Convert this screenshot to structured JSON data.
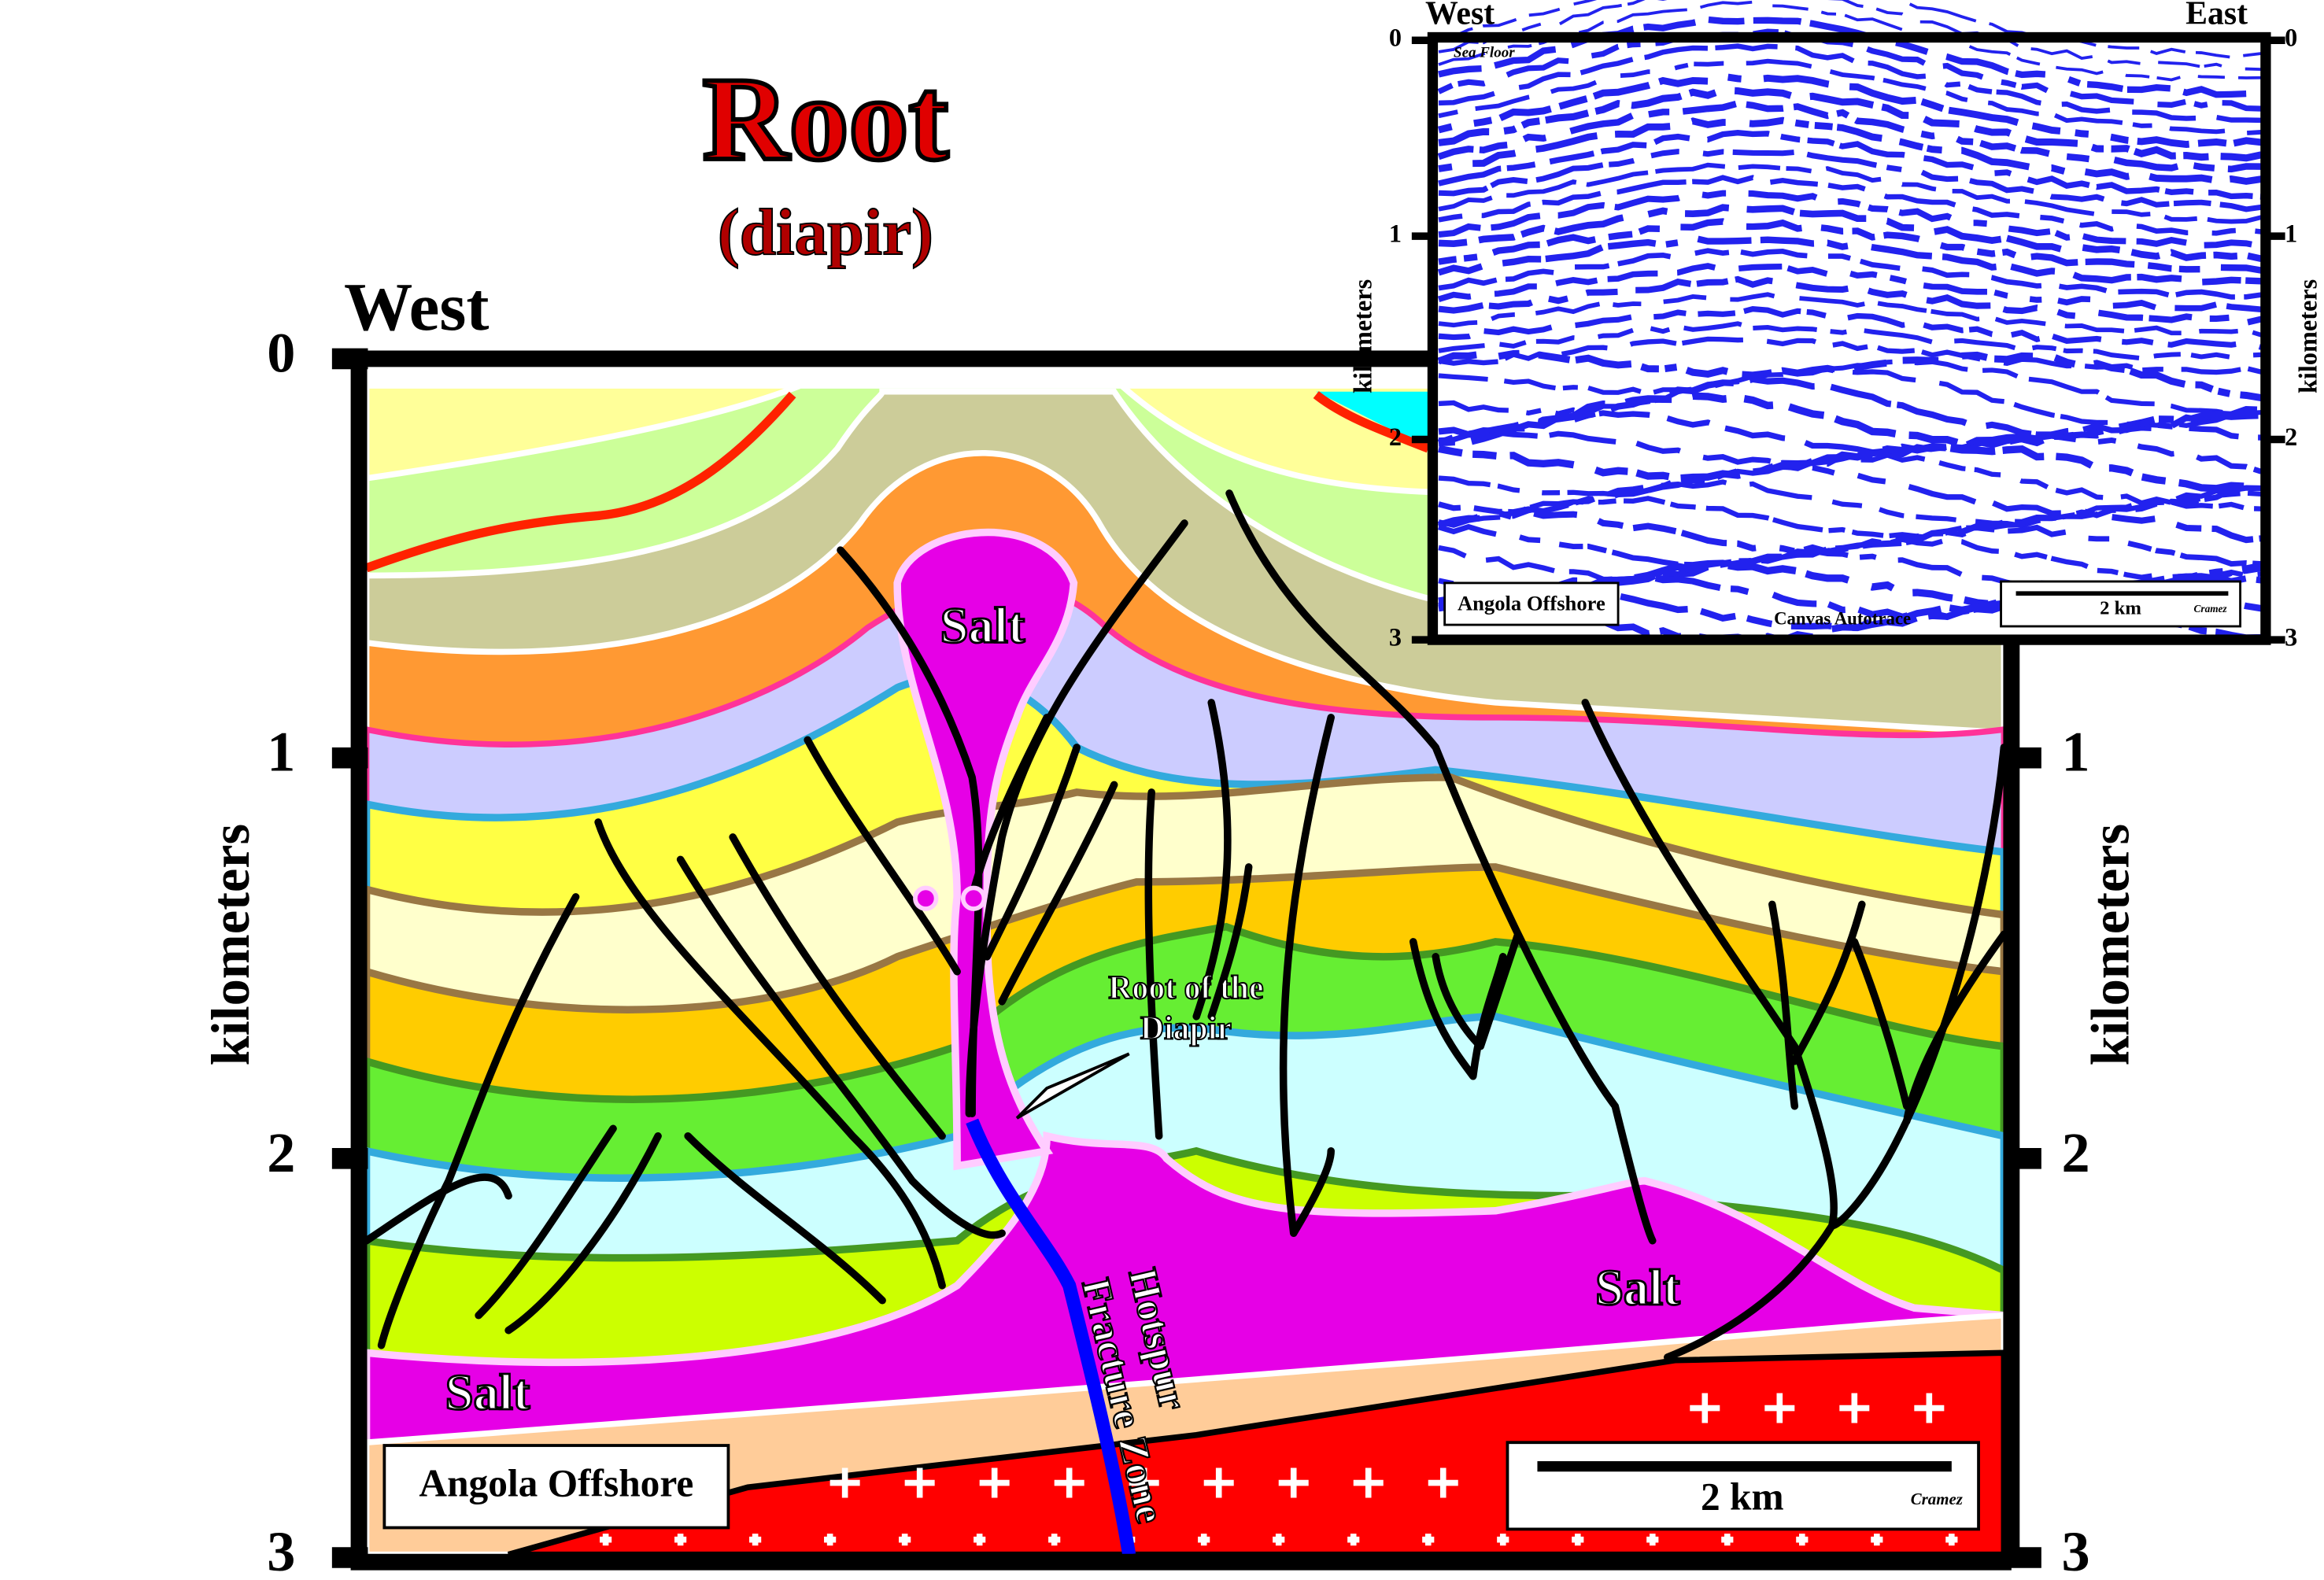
{
  "title": "Root",
  "subtitle": "(diapir)",
  "section": {
    "west_label": "West",
    "left_axis": {
      "label": "kilometers",
      "ticks": [
        "0",
        "1",
        "2",
        "3"
      ]
    },
    "right_axis": {
      "label": "kilometers",
      "ticks": [
        "1",
        "2",
        "3"
      ]
    },
    "salt_labels": [
      "Salt",
      "Salt",
      "Salt"
    ],
    "root_label": [
      "Root of the",
      "Diapir"
    ],
    "fault_label": [
      "Hotspur",
      "Fracture Zone"
    ],
    "location": "Angola Offshore",
    "scale": "2 km",
    "credit": "Cramez"
  },
  "inset": {
    "west_label": "West",
    "east_label": "East",
    "left_axis": {
      "label": "kilometers",
      "ticks": [
        "0",
        "1",
        "2",
        "3"
      ]
    },
    "right_axis": {
      "label": "kilometers",
      "ticks": [
        "0",
        "1",
        "2",
        "3"
      ]
    },
    "sea_floor": "Sea Floor",
    "location": "Angola Offshore",
    "method": "Canvas Autotrace",
    "scale": "2 km",
    "credit": "Cramez"
  }
}
